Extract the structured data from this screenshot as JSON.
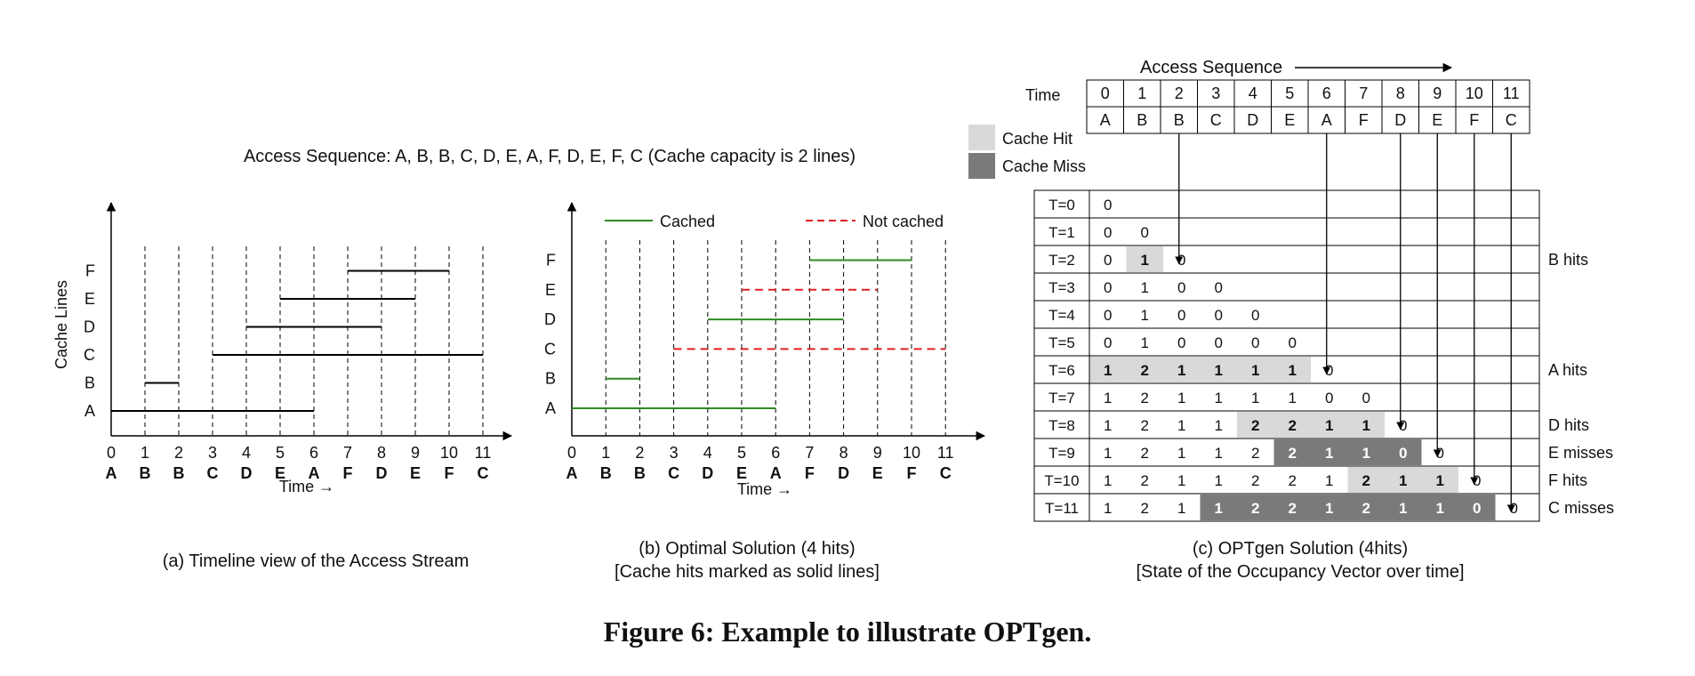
{
  "header": "Access Sequence: A, B, B, C, D, E, A, F, D, E, F, C (Cache capacity is 2 lines)",
  "colors": {
    "cached": "#2e8b22",
    "not_cached": "#e02020",
    "hit": "#d9d9d9",
    "miss": "#7a7a7a",
    "axis": "#000000"
  },
  "timeline": {
    "ylabel": "Cache Lines",
    "xlabel": "Time →",
    "lines": [
      "A",
      "B",
      "C",
      "D",
      "E",
      "F"
    ],
    "times": [
      "0",
      "1",
      "2",
      "3",
      "4",
      "5",
      "6",
      "7",
      "8",
      "9",
      "10",
      "11"
    ],
    "access": [
      "A",
      "B",
      "B",
      "C",
      "D",
      "E",
      "A",
      "F",
      "D",
      "E",
      "F",
      "C"
    ]
  },
  "panel_a": {
    "caption": "(a)  Timeline view of the Access Stream",
    "intervals": [
      {
        "line": "A",
        "start": 0,
        "end": 6
      },
      {
        "line": "B",
        "start": 1,
        "end": 2
      },
      {
        "line": "C",
        "start": 3,
        "end": 11
      },
      {
        "line": "D",
        "start": 4,
        "end": 8
      },
      {
        "line": "E",
        "start": 5,
        "end": 9
      },
      {
        "line": "F",
        "start": 7,
        "end": 10
      }
    ]
  },
  "panel_b": {
    "caption1": "(b)  Optimal Solution (4 hits)",
    "caption2": "[Cache hits marked as solid lines]",
    "legend": {
      "cached": "Cached",
      "not_cached": "Not cached"
    },
    "intervals": [
      {
        "line": "A",
        "start": 0,
        "end": 6,
        "cached": true
      },
      {
        "line": "B",
        "start": 1,
        "end": 2,
        "cached": true
      },
      {
        "line": "C",
        "start": 3,
        "end": 11,
        "cached": false
      },
      {
        "line": "D",
        "start": 4,
        "end": 8,
        "cached": true
      },
      {
        "line": "E",
        "start": 5,
        "end": 9,
        "cached": false
      },
      {
        "line": "F",
        "start": 7,
        "end": 10,
        "cached": true
      }
    ]
  },
  "panel_c": {
    "title": "Access Sequence",
    "time_label": "Time",
    "legend": {
      "hit": "Cache Hit",
      "miss": "Cache Miss"
    },
    "caption1": "(c)  OPTgen Solution (4hits)",
    "caption2": "[State of the Occupancy Vector over time]",
    "row_labels": [
      "T=0",
      "T=1",
      "T=2",
      "T=3",
      "T=4",
      "T=5",
      "T=6",
      "T=7",
      "T=8",
      "T=9",
      "T=10",
      "T=11"
    ],
    "rows": [
      [
        "0"
      ],
      [
        "0",
        "0"
      ],
      [
        "0",
        "1",
        "0"
      ],
      [
        "0",
        "1",
        "0",
        "0"
      ],
      [
        "0",
        "1",
        "0",
        "0",
        "0"
      ],
      [
        "0",
        "1",
        "0",
        "0",
        "0",
        "0"
      ],
      [
        "1",
        "2",
        "1",
        "1",
        "1",
        "1",
        "0"
      ],
      [
        "1",
        "2",
        "1",
        "1",
        "1",
        "1",
        "0",
        "0"
      ],
      [
        "1",
        "2",
        "1",
        "1",
        "2",
        "2",
        "1",
        "1",
        "0"
      ],
      [
        "1",
        "2",
        "1",
        "1",
        "2",
        "2",
        "1",
        "1",
        "0",
        "0"
      ],
      [
        "1",
        "2",
        "1",
        "1",
        "2",
        "2",
        "1",
        "2",
        "1",
        "1",
        "0"
      ],
      [
        "1",
        "2",
        "1",
        "1",
        "2",
        "2",
        "1",
        "2",
        "1",
        "1",
        "0",
        "0"
      ]
    ],
    "shading": [
      [],
      [],
      [
        "",
        "h"
      ],
      [],
      [],
      [],
      [
        "h",
        "h",
        "h",
        "h",
        "h",
        "h"
      ],
      [],
      [
        "",
        "",
        "",
        "",
        "h",
        "h",
        "h",
        "h"
      ],
      [
        "",
        "",
        "",
        "",
        "",
        "m",
        "m",
        "m",
        "m"
      ],
      [
        "",
        "",
        "",
        "",
        "",
        "",
        "",
        "h",
        "h",
        "h"
      ],
      [
        "",
        "",
        "",
        "m",
        "m",
        "m",
        "m",
        "m",
        "m",
        "m",
        "m"
      ]
    ],
    "row_notes": [
      {
        "row": 2,
        "text": "B hits"
      },
      {
        "row": 6,
        "text": "A hits"
      },
      {
        "row": 8,
        "text": "D hits"
      },
      {
        "row": 9,
        "text": "E misses"
      },
      {
        "row": 10,
        "text": "F hits"
      },
      {
        "row": 11,
        "text": "C misses"
      }
    ],
    "arrows": [
      {
        "col": 2,
        "row": 2
      },
      {
        "col": 6,
        "row": 6
      },
      {
        "col": 8,
        "row": 8
      },
      {
        "col": 9,
        "row": 9
      },
      {
        "col": 10,
        "row": 10
      },
      {
        "col": 11,
        "row": 11
      }
    ]
  },
  "figure_caption": "Figure 6: Example to illustrate OPTgen."
}
